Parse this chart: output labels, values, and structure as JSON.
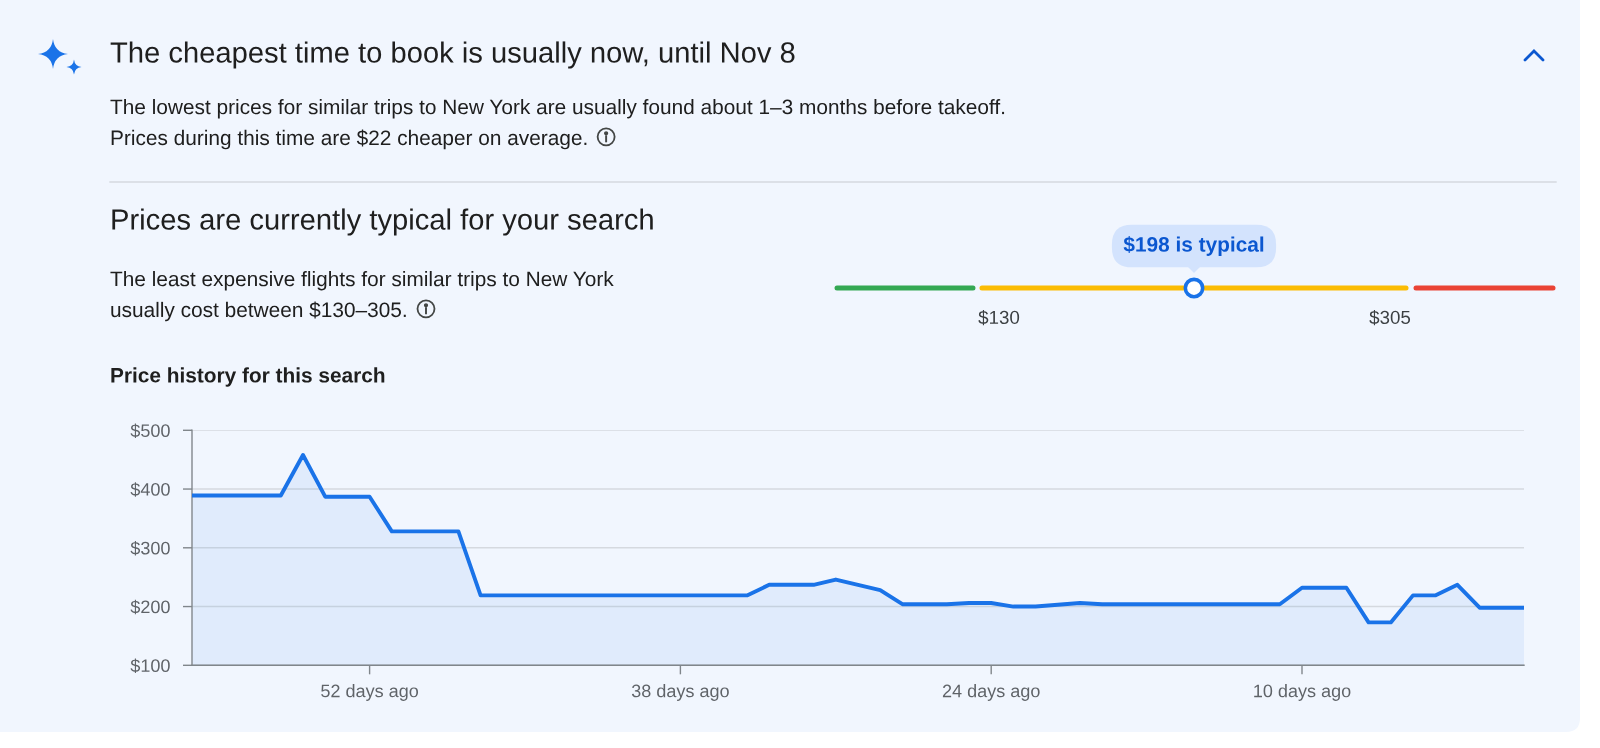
{
  "chart_data": [
    {
      "type": "other",
      "title": "The cheapest time to book is usually now, until Nov 8",
      "subtitle": "The lowest prices for similar trips to New York are usually found about 1–3 months before takeoff. Prices during this time are $22 cheaper on average."
    },
    {
      "type": "other",
      "title": "Prices are currently typical for your search",
      "subtitle": "The least expensive flights for similar trips to New York usually cost between $130–305.",
      "annotations": [
        "$130",
        "$305",
        "$198 is typical"
      ]
    },
    {
      "type": "area",
      "title": "Price history for this search",
      "x": [
        60,
        59,
        58,
        57,
        56,
        55,
        54,
        53,
        52,
        51,
        50,
        49,
        48,
        47,
        46,
        45,
        44,
        43,
        42,
        41,
        40,
        39,
        38,
        37,
        36,
        35,
        34,
        33,
        32,
        31,
        30,
        29,
        28,
        27,
        26,
        25,
        24,
        23,
        22,
        21,
        20,
        19,
        18,
        17,
        16,
        15,
        14,
        13,
        12,
        11,
        10,
        9,
        8,
        7,
        6,
        5,
        4,
        3,
        2,
        1,
        0
      ],
      "series": [
        {
          "color": "#1a73e8",
          "values": [
            389,
            389,
            389,
            389,
            389,
            458,
            387,
            387,
            387,
            328,
            328,
            328,
            328,
            219,
            219,
            219,
            219,
            219,
            219,
            219,
            219,
            219,
            219,
            219,
            219,
            219,
            237,
            237,
            237,
            246,
            237,
            228,
            204,
            204,
            204,
            206,
            206,
            200,
            200,
            203,
            206,
            204,
            204,
            204,
            204,
            204,
            204,
            204,
            204,
            204,
            232,
            232,
            232,
            173,
            173,
            219,
            219,
            237,
            198,
            198,
            198
          ]
        }
      ],
      "xlim": [
        60,
        0
      ],
      "xticks": [
        {
          "value": 52,
          "label": "52 days ago"
        },
        {
          "value": 38,
          "label": "38 days ago"
        },
        {
          "value": 24,
          "label": "24 days ago"
        },
        {
          "value": 10,
          "label": "10 days ago"
        }
      ],
      "ylim": [
        100,
        500
      ],
      "yticks": [
        {
          "value": 100,
          "label": "$100"
        },
        {
          "value": 200,
          "label": "$200"
        },
        {
          "value": 300,
          "label": "$300"
        },
        {
          "value": 400,
          "label": "$400"
        },
        {
          "value": 500,
          "label": "$500"
        }
      ],
      "grid": "y"
    }
  ]
}
